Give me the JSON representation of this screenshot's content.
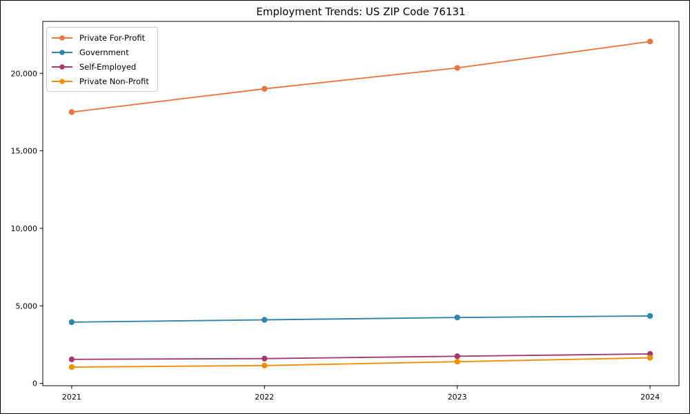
{
  "chart_data": {
    "type": "line",
    "title": "Employment Trends: US ZIP Code 76131",
    "xlabel": "",
    "ylabel": "",
    "x": [
      2021,
      2022,
      2023,
      2024
    ],
    "x_tick_labels": [
      "2021",
      "2022",
      "2023",
      "2024"
    ],
    "y_ticks": [
      0,
      5000,
      10000,
      15000,
      20000
    ],
    "y_tick_labels": [
      "0",
      "5,000",
      "10,000",
      "15,000",
      "20,000"
    ],
    "xlim": [
      2020.85,
      2024.15
    ],
    "ylim": [
      -150,
      23350
    ],
    "grid": false,
    "legend_position": "upper-left",
    "marker": "circle",
    "marker_size": 8.4,
    "line_width": 1.9,
    "axis_color": "#000000",
    "background_color": "#ffffff",
    "series": [
      {
        "name": "Private For-Profit",
        "color": "#E8773E",
        "values": [
          17500,
          19000,
          20350,
          22050
        ]
      },
      {
        "name": "Government",
        "color": "#2E86AB",
        "values": [
          3950,
          4100,
          4250,
          4350
        ]
      },
      {
        "name": "Self-Employed",
        "color": "#A23B72",
        "values": [
          1550,
          1600,
          1750,
          1900
        ]
      },
      {
        "name": "Private Non-Profit",
        "color": "#F18F01",
        "values": [
          1050,
          1150,
          1400,
          1650
        ]
      }
    ]
  }
}
